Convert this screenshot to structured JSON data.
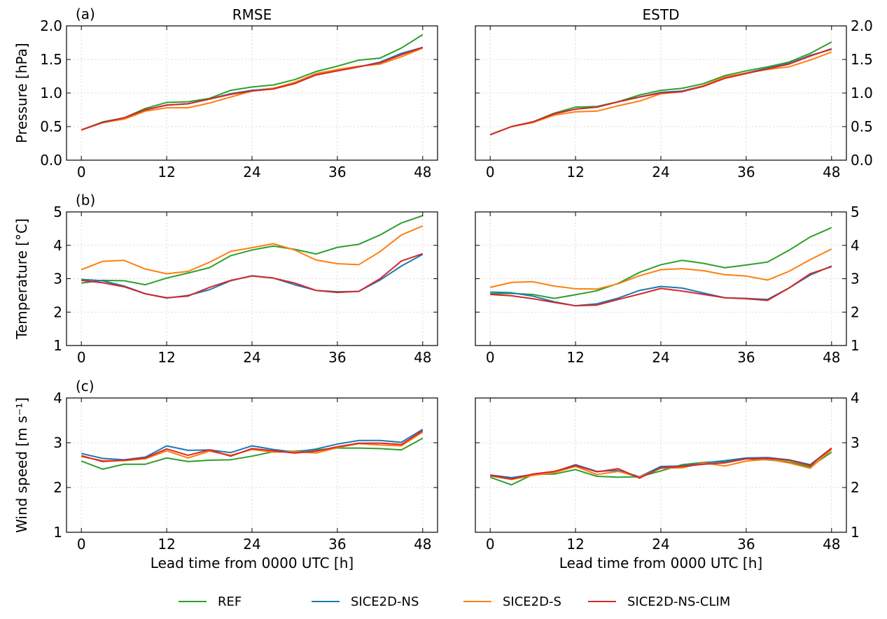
{
  "chart_data": {
    "type": "line",
    "col_titles": [
      "RMSE",
      "ESTD"
    ],
    "xlabel": "Lead time from 0000 UTC [h]",
    "x": [
      0,
      3,
      6,
      9,
      12,
      15,
      18,
      21,
      24,
      27,
      30,
      33,
      36,
      39,
      42,
      45,
      48
    ],
    "xticks": [
      0,
      12,
      24,
      36,
      48
    ],
    "legend_position": "bottom-center",
    "grid": true,
    "series_names": [
      "REF",
      "SICE2D-NS",
      "SICE2D-S",
      "SICE2D-NS-CLIM"
    ],
    "series_colors": [
      "#2ca02c",
      "#1f77b4",
      "#ff7f0e",
      "#d62728"
    ],
    "rows": [
      {
        "letter": "(a)",
        "ylabel": "Pressure [hPa]",
        "ylim": [
          0,
          2.0
        ],
        "yticks": [
          "0.0",
          "0.5",
          "1.0",
          "1.5",
          "2.0"
        ],
        "panels": [
          {
            "title": "RMSE",
            "series": [
              {
                "name": "REF",
                "values": [
                  0.45,
                  0.57,
                  0.63,
                  0.77,
                  0.86,
                  0.87,
                  0.92,
                  1.04,
                  1.09,
                  1.12,
                  1.2,
                  1.32,
                  1.4,
                  1.49,
                  1.52,
                  1.67,
                  1.87
                ]
              },
              {
                "name": "SICE2D-NS",
                "values": [
                  0.45,
                  0.56,
                  0.63,
                  0.75,
                  0.82,
                  0.84,
                  0.91,
                  0.99,
                  1.04,
                  1.07,
                  1.15,
                  1.27,
                  1.33,
                  1.39,
                  1.46,
                  1.59,
                  1.68
                ]
              },
              {
                "name": "SICE2D-S",
                "values": [
                  0.45,
                  0.56,
                  0.61,
                  0.73,
                  0.78,
                  0.78,
                  0.85,
                  0.94,
                  1.03,
                  1.07,
                  1.16,
                  1.29,
                  1.35,
                  1.4,
                  1.43,
                  1.54,
                  1.67
                ]
              },
              {
                "name": "SICE2D-NS-CLIM",
                "values": [
                  0.45,
                  0.56,
                  0.63,
                  0.75,
                  0.82,
                  0.84,
                  0.91,
                  0.98,
                  1.03,
                  1.06,
                  1.14,
                  1.27,
                  1.33,
                  1.39,
                  1.45,
                  1.57,
                  1.68
                ]
              }
            ]
          },
          {
            "title": "ESTD",
            "series": [
              {
                "name": "REF",
                "values": [
                  0.38,
                  0.5,
                  0.57,
                  0.7,
                  0.79,
                  0.8,
                  0.87,
                  0.97,
                  1.04,
                  1.07,
                  1.14,
                  1.26,
                  1.33,
                  1.39,
                  1.46,
                  1.59,
                  1.76
                ]
              },
              {
                "name": "SICE2D-NS",
                "values": [
                  0.38,
                  0.5,
                  0.57,
                  0.69,
                  0.76,
                  0.79,
                  0.87,
                  0.94,
                  1.01,
                  1.03,
                  1.11,
                  1.23,
                  1.3,
                  1.37,
                  1.44,
                  1.56,
                  1.65
                ]
              },
              {
                "name": "SICE2D-S",
                "values": [
                  0.38,
                  0.5,
                  0.56,
                  0.67,
                  0.72,
                  0.73,
                  0.81,
                  0.88,
                  0.99,
                  1.02,
                  1.11,
                  1.24,
                  1.3,
                  1.35,
                  1.39,
                  1.49,
                  1.61
                ]
              },
              {
                "name": "SICE2D-NS-CLIM",
                "values": [
                  0.38,
                  0.5,
                  0.57,
                  0.69,
                  0.76,
                  0.79,
                  0.87,
                  0.94,
                  1.0,
                  1.02,
                  1.1,
                  1.22,
                  1.29,
                  1.36,
                  1.43,
                  1.55,
                  1.66
                ]
              }
            ]
          }
        ]
      },
      {
        "letter": "(b)",
        "ylabel": "Temperature [°C]",
        "ylim": [
          1,
          5
        ],
        "yticks": [
          "1",
          "2",
          "3",
          "4",
          "5"
        ],
        "panels": [
          {
            "title": "RMSE",
            "series": [
              {
                "name": "REF",
                "values": [
                  2.87,
                  2.95,
                  2.94,
                  2.82,
                  3.02,
                  3.17,
                  3.33,
                  3.69,
                  3.86,
                  3.98,
                  3.88,
                  3.74,
                  3.94,
                  4.03,
                  4.31,
                  4.67,
                  4.89
                ]
              },
              {
                "name": "SICE2D-NS",
                "values": [
                  2.98,
                  2.94,
                  2.78,
                  2.55,
                  2.42,
                  2.5,
                  2.67,
                  2.94,
                  3.09,
                  3.02,
                  2.82,
                  2.65,
                  2.61,
                  2.62,
                  2.96,
                  3.38,
                  3.73
                ]
              },
              {
                "name": "SICE2D-S",
                "values": [
                  3.27,
                  3.52,
                  3.55,
                  3.29,
                  3.15,
                  3.22,
                  3.49,
                  3.82,
                  3.93,
                  4.05,
                  3.86,
                  3.56,
                  3.45,
                  3.42,
                  3.81,
                  4.31,
                  4.58
                ]
              },
              {
                "name": "SICE2D-NS-CLIM",
                "values": [
                  2.95,
                  2.88,
                  2.76,
                  2.55,
                  2.43,
                  2.48,
                  2.74,
                  2.95,
                  3.08,
                  3.02,
                  2.87,
                  2.65,
                  2.59,
                  2.62,
                  3.0,
                  3.53,
                  3.75
                ]
              }
            ]
          },
          {
            "title": "ESTD",
            "series": [
              {
                "name": "REF",
                "values": [
                  2.55,
                  2.56,
                  2.53,
                  2.41,
                  2.52,
                  2.64,
                  2.86,
                  3.19,
                  3.42,
                  3.55,
                  3.46,
                  3.33,
                  3.41,
                  3.5,
                  3.85,
                  4.25,
                  4.53
                ]
              },
              {
                "name": "SICE2D-NS",
                "values": [
                  2.6,
                  2.58,
                  2.48,
                  2.31,
                  2.19,
                  2.25,
                  2.42,
                  2.65,
                  2.77,
                  2.72,
                  2.57,
                  2.43,
                  2.41,
                  2.38,
                  2.72,
                  3.11,
                  3.38
                ]
              },
              {
                "name": "SICE2D-S",
                "values": [
                  2.74,
                  2.89,
                  2.91,
                  2.78,
                  2.7,
                  2.69,
                  2.85,
                  3.09,
                  3.27,
                  3.3,
                  3.24,
                  3.12,
                  3.08,
                  2.96,
                  3.22,
                  3.57,
                  3.89
                ]
              },
              {
                "name": "SICE2D-NS-CLIM",
                "values": [
                  2.53,
                  2.49,
                  2.4,
                  2.29,
                  2.19,
                  2.21,
                  2.38,
                  2.54,
                  2.71,
                  2.63,
                  2.53,
                  2.43,
                  2.4,
                  2.35,
                  2.72,
                  3.15,
                  3.36
                ]
              }
            ]
          }
        ]
      },
      {
        "letter": "(c)",
        "ylabel": "Wind speed [m s⁻¹]",
        "ylim": [
          1,
          4
        ],
        "yticks": [
          "1",
          "2",
          "3",
          "4"
        ],
        "panels": [
          {
            "title": "RMSE",
            "series": [
              {
                "name": "REF",
                "values": [
                  2.59,
                  2.41,
                  2.52,
                  2.52,
                  2.66,
                  2.58,
                  2.61,
                  2.62,
                  2.7,
                  2.8,
                  2.81,
                  2.84,
                  2.88,
                  2.88,
                  2.87,
                  2.84,
                  3.1
                ]
              },
              {
                "name": "SICE2D-NS",
                "values": [
                  2.76,
                  2.65,
                  2.62,
                  2.68,
                  2.93,
                  2.83,
                  2.84,
                  2.78,
                  2.93,
                  2.85,
                  2.79,
                  2.86,
                  2.97,
                  3.05,
                  3.05,
                  3.01,
                  3.3
                ]
              },
              {
                "name": "SICE2D-S",
                "values": [
                  2.69,
                  2.6,
                  2.6,
                  2.64,
                  2.82,
                  2.66,
                  2.81,
                  2.72,
                  2.85,
                  2.79,
                  2.8,
                  2.77,
                  2.89,
                  2.98,
                  2.95,
                  2.93,
                  3.24
                ]
              },
              {
                "name": "SICE2D-NS-CLIM",
                "values": [
                  2.71,
                  2.58,
                  2.61,
                  2.66,
                  2.86,
                  2.72,
                  2.84,
                  2.7,
                  2.87,
                  2.82,
                  2.77,
                  2.81,
                  2.91,
                  2.99,
                  2.99,
                  2.96,
                  3.27
                ]
              }
            ]
          },
          {
            "title": "ESTD",
            "series": [
              {
                "name": "REF",
                "values": [
                  2.23,
                  2.06,
                  2.29,
                  2.3,
                  2.4,
                  2.25,
                  2.23,
                  2.24,
                  2.37,
                  2.51,
                  2.56,
                  2.58,
                  2.64,
                  2.62,
                  2.57,
                  2.46,
                  2.79
                ]
              },
              {
                "name": "SICE2D-NS",
                "values": [
                  2.28,
                  2.22,
                  2.29,
                  2.35,
                  2.51,
                  2.36,
                  2.38,
                  2.24,
                  2.47,
                  2.48,
                  2.55,
                  2.6,
                  2.66,
                  2.67,
                  2.62,
                  2.51,
                  2.88
                ]
              },
              {
                "name": "SICE2D-S",
                "values": [
                  2.26,
                  2.18,
                  2.27,
                  2.33,
                  2.47,
                  2.29,
                  2.36,
                  2.23,
                  2.43,
                  2.44,
                  2.55,
                  2.48,
                  2.59,
                  2.63,
                  2.55,
                  2.43,
                  2.85
                ]
              },
              {
                "name": "SICE2D-NS-CLIM",
                "values": [
                  2.27,
                  2.19,
                  2.3,
                  2.36,
                  2.49,
                  2.35,
                  2.42,
                  2.21,
                  2.44,
                  2.47,
                  2.52,
                  2.55,
                  2.64,
                  2.65,
                  2.61,
                  2.49,
                  2.88
                ]
              }
            ]
          }
        ]
      }
    ]
  }
}
